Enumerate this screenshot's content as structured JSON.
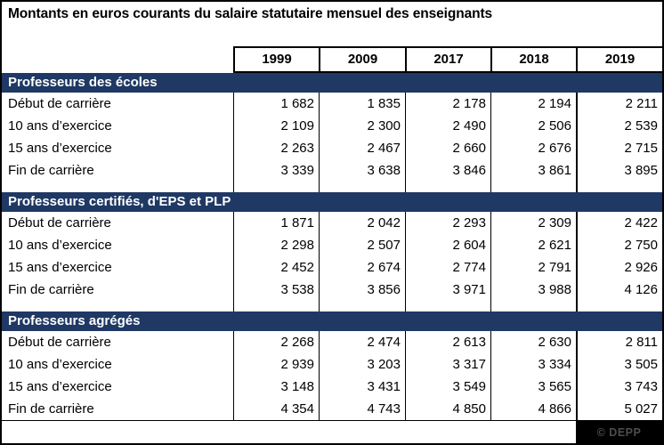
{
  "title": "Montants en euros courants du salaire statutaire mensuel des enseignants",
  "columns": [
    "1999",
    "2009",
    "2017",
    "2018",
    "2019"
  ],
  "sections": [
    {
      "header": "Professeurs des écoles",
      "rows": [
        {
          "label": "Début de carrière",
          "values": [
            "1 682",
            "1 835",
            "2 178",
            "2 194",
            "2 211"
          ]
        },
        {
          "label": "10 ans d’exercice",
          "values": [
            "2 109",
            "2 300",
            "2 490",
            "2 506",
            "2 539"
          ]
        },
        {
          "label": "15 ans d’exercice",
          "values": [
            "2 263",
            "2 467",
            "2 660",
            "2 676",
            "2 715"
          ]
        },
        {
          "label": "Fin de carrière",
          "values": [
            "3 339",
            "3 638",
            "3 846",
            "3 861",
            "3 895"
          ]
        }
      ]
    },
    {
      "header": "Professeurs certifiés, d'EPS et PLP",
      "rows": [
        {
          "label": "Début de carrière",
          "values": [
            "1 871",
            "2 042",
            "2 293",
            "2 309",
            "2 422"
          ]
        },
        {
          "label": "10 ans d’exercice",
          "values": [
            "2 298",
            "2 507",
            "2 604",
            "2 621",
            "2 750"
          ]
        },
        {
          "label": "15 ans d’exercice",
          "values": [
            "2 452",
            "2 674",
            "2 774",
            "2 791",
            "2 926"
          ]
        },
        {
          "label": "Fin de carrière",
          "values": [
            "3 538",
            "3 856",
            "3 971",
            "3 988",
            "4 126"
          ]
        }
      ]
    },
    {
      "header": "Professeurs agrégés",
      "rows": [
        {
          "label": "Début de carrière",
          "values": [
            "2 268",
            "2 474",
            "2 613",
            "2 630",
            "2 811"
          ]
        },
        {
          "label": "10 ans d’exercice",
          "values": [
            "2 939",
            "3 203",
            "3 317",
            "3 334",
            "3 505"
          ]
        },
        {
          "label": "15 ans d’exercice",
          "values": [
            "3 148",
            "3 431",
            "3 549",
            "3 565",
            "3 743"
          ]
        },
        {
          "label": "Fin de carrière",
          "values": [
            "4 354",
            "4 743",
            "4 850",
            "4 866",
            "5 027"
          ]
        }
      ]
    }
  ],
  "footer": {
    "credit": "© DEPP"
  },
  "colors": {
    "section_header_bg": "#1F3864",
    "section_header_text": "#FFFFFF",
    "table_border": "#000000",
    "credit_bg": "#000000",
    "credit_text": "#4D4D4D"
  },
  "chart_data": {
    "type": "table",
    "title": "Montants en euros courants du salaire statutaire mensuel des enseignants",
    "columns": [
      "1999",
      "2009",
      "2017",
      "2018",
      "2019"
    ],
    "sections": [
      {
        "name": "Professeurs des écoles",
        "rows": [
          {
            "label": "Début de carrière",
            "values": [
              1682,
              1835,
              2178,
              2194,
              2211
            ]
          },
          {
            "label": "10 ans d’exercice",
            "values": [
              2109,
              2300,
              2490,
              2506,
              2539
            ]
          },
          {
            "label": "15 ans d’exercice",
            "values": [
              2263,
              2467,
              2660,
              2676,
              2715
            ]
          },
          {
            "label": "Fin de carrière",
            "values": [
              3339,
              3638,
              3846,
              3861,
              3895
            ]
          }
        ]
      },
      {
        "name": "Professeurs certifiés, d'EPS et PLP",
        "rows": [
          {
            "label": "Début de carrière",
            "values": [
              1871,
              2042,
              2293,
              2309,
              2422
            ]
          },
          {
            "label": "10 ans d’exercice",
            "values": [
              2298,
              2507,
              2604,
              2621,
              2750
            ]
          },
          {
            "label": "15 ans d’exercice",
            "values": [
              2452,
              2674,
              2774,
              2791,
              2926
            ]
          },
          {
            "label": "Fin de carrière",
            "values": [
              3538,
              3856,
              3971,
              3988,
              4126
            ]
          }
        ]
      },
      {
        "name": "Professeurs agrégés",
        "rows": [
          {
            "label": "Début de carrière",
            "values": [
              2268,
              2474,
              2613,
              2630,
              2811
            ]
          },
          {
            "label": "10 ans d’exercice",
            "values": [
              2939,
              3203,
              3317,
              3334,
              3505
            ]
          },
          {
            "label": "15 ans d’exercice",
            "values": [
              3148,
              3431,
              3549,
              3565,
              3743
            ]
          },
          {
            "label": "Fin de carrière",
            "values": [
              4354,
              4743,
              4850,
              4866,
              5027
            ]
          }
        ]
      }
    ],
    "source": "© DEPP"
  }
}
